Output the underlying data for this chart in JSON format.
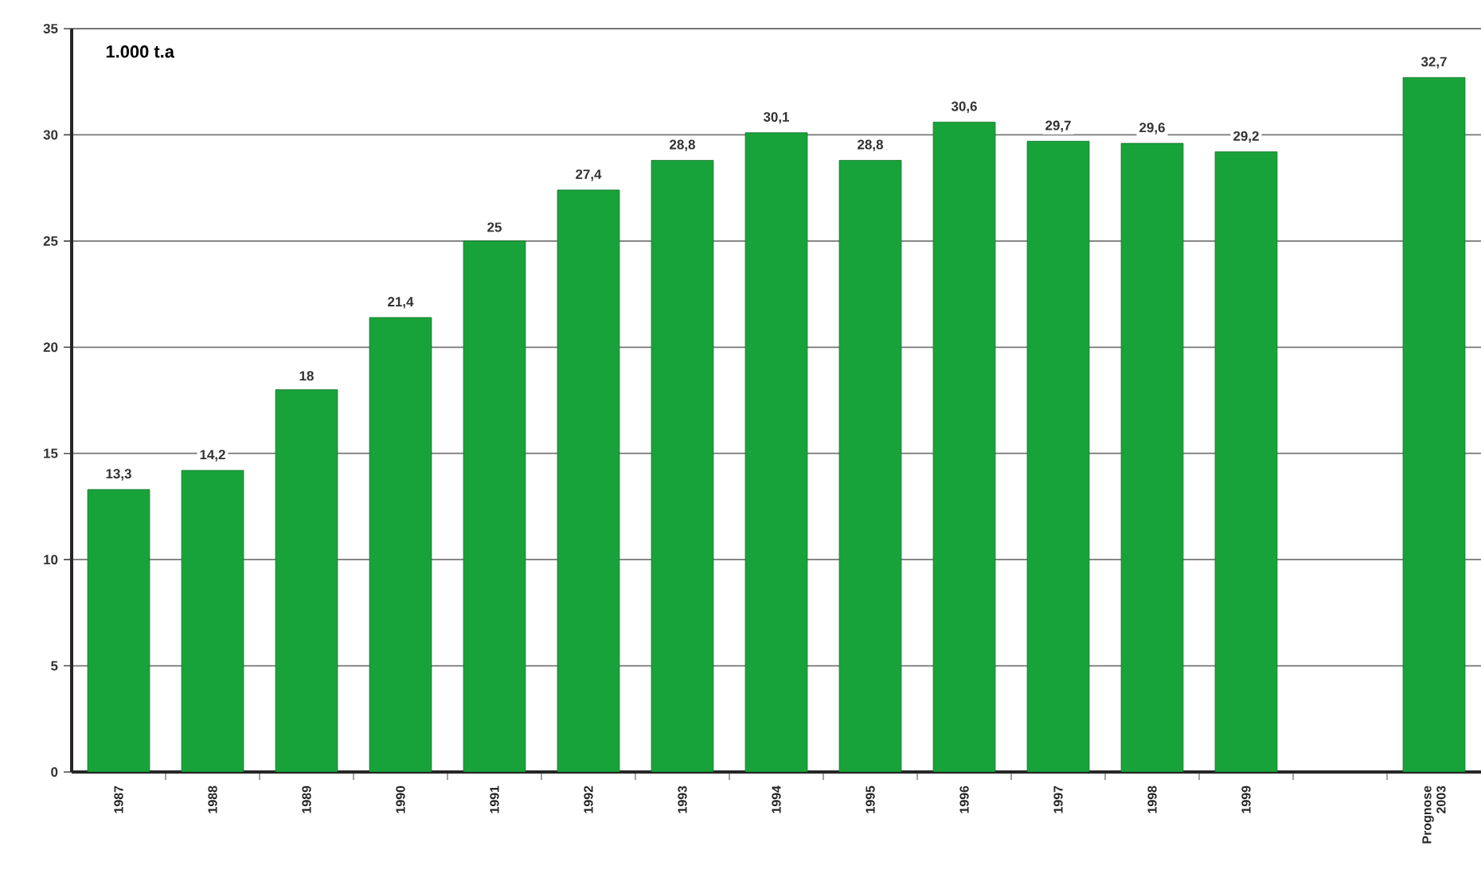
{
  "chart_data": {
    "type": "bar",
    "ylabel": "1.000 t.a",
    "categories": [
      "1987",
      "1988",
      "1989",
      "1990",
      "1991",
      "1992",
      "1993",
      "1994",
      "1995",
      "1996",
      "1997",
      "1998",
      "1999",
      null,
      "Prognose 2003"
    ],
    "values": [
      13.3,
      14.2,
      18,
      21.4,
      25,
      27.4,
      28.8,
      30.1,
      28.8,
      30.6,
      29.7,
      29.6,
      29.2,
      null,
      32.7
    ],
    "value_labels": [
      "13,3",
      "14,2",
      "18",
      "21,4",
      "25",
      "27,4",
      "28,8",
      "30,1",
      "28,8",
      "30,6",
      "29,7",
      "29,6",
      "29,2",
      null,
      "32,7"
    ],
    "color": "#18a33a",
    "ylim": [
      0,
      35
    ],
    "yticks": [
      0,
      5,
      10,
      15,
      20,
      25,
      30,
      35
    ],
    "grid": "y"
  }
}
